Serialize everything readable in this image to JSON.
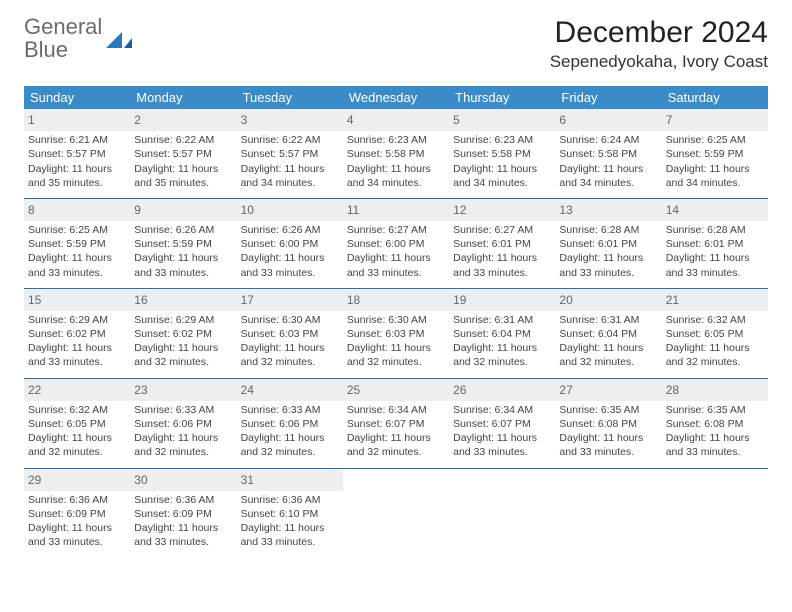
{
  "brand": {
    "part1": "General",
    "part2": "Blue"
  },
  "title": "December 2024",
  "location": "Sepenedyokaha, Ivory Coast",
  "colors": {
    "header_bg": "#3b8bc8",
    "header_text": "#ffffff",
    "daynum_bg": "#eceff1",
    "rule": "#2f6fa3",
    "logo_gray": "#6b6b6b",
    "logo_blue": "#2a7ab9"
  },
  "day_headers": [
    "Sunday",
    "Monday",
    "Tuesday",
    "Wednesday",
    "Thursday",
    "Friday",
    "Saturday"
  ],
  "weeks": [
    [
      {
        "n": "1",
        "sr": "Sunrise: 6:21 AM",
        "ss": "Sunset: 5:57 PM",
        "dl": "Daylight: 11 hours and 35 minutes."
      },
      {
        "n": "2",
        "sr": "Sunrise: 6:22 AM",
        "ss": "Sunset: 5:57 PM",
        "dl": "Daylight: 11 hours and 35 minutes."
      },
      {
        "n": "3",
        "sr": "Sunrise: 6:22 AM",
        "ss": "Sunset: 5:57 PM",
        "dl": "Daylight: 11 hours and 34 minutes."
      },
      {
        "n": "4",
        "sr": "Sunrise: 6:23 AM",
        "ss": "Sunset: 5:58 PM",
        "dl": "Daylight: 11 hours and 34 minutes."
      },
      {
        "n": "5",
        "sr": "Sunrise: 6:23 AM",
        "ss": "Sunset: 5:58 PM",
        "dl": "Daylight: 11 hours and 34 minutes."
      },
      {
        "n": "6",
        "sr": "Sunrise: 6:24 AM",
        "ss": "Sunset: 5:58 PM",
        "dl": "Daylight: 11 hours and 34 minutes."
      },
      {
        "n": "7",
        "sr": "Sunrise: 6:25 AM",
        "ss": "Sunset: 5:59 PM",
        "dl": "Daylight: 11 hours and 34 minutes."
      }
    ],
    [
      {
        "n": "8",
        "sr": "Sunrise: 6:25 AM",
        "ss": "Sunset: 5:59 PM",
        "dl": "Daylight: 11 hours and 33 minutes."
      },
      {
        "n": "9",
        "sr": "Sunrise: 6:26 AM",
        "ss": "Sunset: 5:59 PM",
        "dl": "Daylight: 11 hours and 33 minutes."
      },
      {
        "n": "10",
        "sr": "Sunrise: 6:26 AM",
        "ss": "Sunset: 6:00 PM",
        "dl": "Daylight: 11 hours and 33 minutes."
      },
      {
        "n": "11",
        "sr": "Sunrise: 6:27 AM",
        "ss": "Sunset: 6:00 PM",
        "dl": "Daylight: 11 hours and 33 minutes."
      },
      {
        "n": "12",
        "sr": "Sunrise: 6:27 AM",
        "ss": "Sunset: 6:01 PM",
        "dl": "Daylight: 11 hours and 33 minutes."
      },
      {
        "n": "13",
        "sr": "Sunrise: 6:28 AM",
        "ss": "Sunset: 6:01 PM",
        "dl": "Daylight: 11 hours and 33 minutes."
      },
      {
        "n": "14",
        "sr": "Sunrise: 6:28 AM",
        "ss": "Sunset: 6:01 PM",
        "dl": "Daylight: 11 hours and 33 minutes."
      }
    ],
    [
      {
        "n": "15",
        "sr": "Sunrise: 6:29 AM",
        "ss": "Sunset: 6:02 PM",
        "dl": "Daylight: 11 hours and 33 minutes."
      },
      {
        "n": "16",
        "sr": "Sunrise: 6:29 AM",
        "ss": "Sunset: 6:02 PM",
        "dl": "Daylight: 11 hours and 32 minutes."
      },
      {
        "n": "17",
        "sr": "Sunrise: 6:30 AM",
        "ss": "Sunset: 6:03 PM",
        "dl": "Daylight: 11 hours and 32 minutes."
      },
      {
        "n": "18",
        "sr": "Sunrise: 6:30 AM",
        "ss": "Sunset: 6:03 PM",
        "dl": "Daylight: 11 hours and 32 minutes."
      },
      {
        "n": "19",
        "sr": "Sunrise: 6:31 AM",
        "ss": "Sunset: 6:04 PM",
        "dl": "Daylight: 11 hours and 32 minutes."
      },
      {
        "n": "20",
        "sr": "Sunrise: 6:31 AM",
        "ss": "Sunset: 6:04 PM",
        "dl": "Daylight: 11 hours and 32 minutes."
      },
      {
        "n": "21",
        "sr": "Sunrise: 6:32 AM",
        "ss": "Sunset: 6:05 PM",
        "dl": "Daylight: 11 hours and 32 minutes."
      }
    ],
    [
      {
        "n": "22",
        "sr": "Sunrise: 6:32 AM",
        "ss": "Sunset: 6:05 PM",
        "dl": "Daylight: 11 hours and 32 minutes."
      },
      {
        "n": "23",
        "sr": "Sunrise: 6:33 AM",
        "ss": "Sunset: 6:06 PM",
        "dl": "Daylight: 11 hours and 32 minutes."
      },
      {
        "n": "24",
        "sr": "Sunrise: 6:33 AM",
        "ss": "Sunset: 6:06 PM",
        "dl": "Daylight: 11 hours and 32 minutes."
      },
      {
        "n": "25",
        "sr": "Sunrise: 6:34 AM",
        "ss": "Sunset: 6:07 PM",
        "dl": "Daylight: 11 hours and 32 minutes."
      },
      {
        "n": "26",
        "sr": "Sunrise: 6:34 AM",
        "ss": "Sunset: 6:07 PM",
        "dl": "Daylight: 11 hours and 33 minutes."
      },
      {
        "n": "27",
        "sr": "Sunrise: 6:35 AM",
        "ss": "Sunset: 6:08 PM",
        "dl": "Daylight: 11 hours and 33 minutes."
      },
      {
        "n": "28",
        "sr": "Sunrise: 6:35 AM",
        "ss": "Sunset: 6:08 PM",
        "dl": "Daylight: 11 hours and 33 minutes."
      }
    ],
    [
      {
        "n": "29",
        "sr": "Sunrise: 6:36 AM",
        "ss": "Sunset: 6:09 PM",
        "dl": "Daylight: 11 hours and 33 minutes."
      },
      {
        "n": "30",
        "sr": "Sunrise: 6:36 AM",
        "ss": "Sunset: 6:09 PM",
        "dl": "Daylight: 11 hours and 33 minutes."
      },
      {
        "n": "31",
        "sr": "Sunrise: 6:36 AM",
        "ss": "Sunset: 6:10 PM",
        "dl": "Daylight: 11 hours and 33 minutes."
      },
      {
        "n": "",
        "sr": "",
        "ss": "",
        "dl": ""
      },
      {
        "n": "",
        "sr": "",
        "ss": "",
        "dl": ""
      },
      {
        "n": "",
        "sr": "",
        "ss": "",
        "dl": ""
      },
      {
        "n": "",
        "sr": "",
        "ss": "",
        "dl": ""
      }
    ]
  ]
}
